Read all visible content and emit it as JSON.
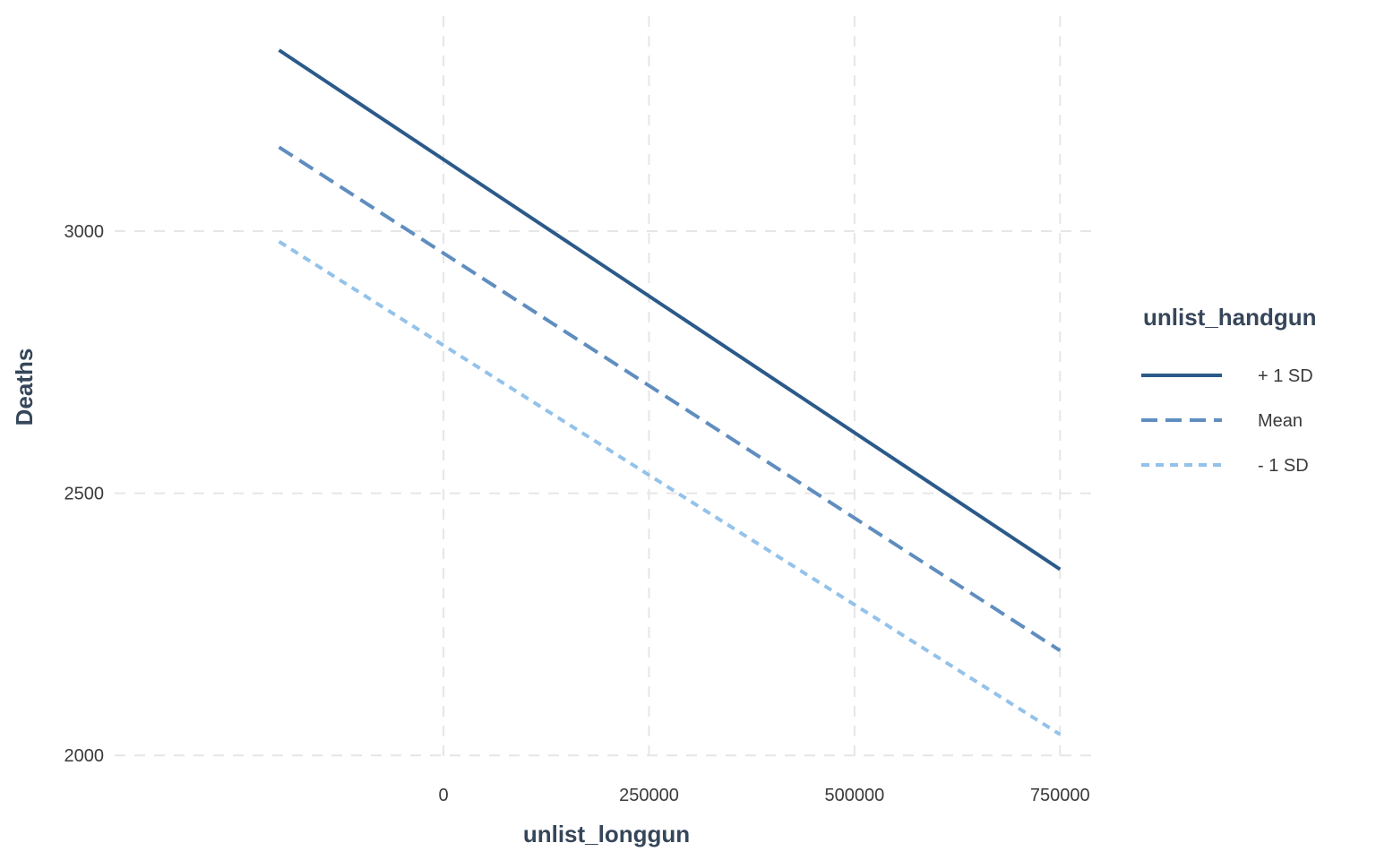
{
  "chart_data": {
    "type": "line",
    "xlabel": "unlist_longgun",
    "ylabel": "Deaths",
    "xlim": [
      -400000,
      790000
    ],
    "ylim": [
      1985,
      3410
    ],
    "x_ticks": [
      0,
      250000,
      500000,
      750000
    ],
    "x_tick_labels": [
      "0",
      "250000",
      "500000",
      "750000"
    ],
    "y_ticks": [
      2000,
      2500,
      3000
    ],
    "y_tick_labels": [
      "2000",
      "2500",
      "3000"
    ],
    "grid": true,
    "legend": {
      "title": "unlist_handgun",
      "placement": "right"
    },
    "series": [
      {
        "name": "+ 1 SD",
        "line_style": "solid",
        "color": "#2b5a8a",
        "x": [
          -200000,
          750000
        ],
        "y": [
          3345,
          2355
        ]
      },
      {
        "name": "Mean",
        "line_style": "dashed",
        "color": "#5f8dbf",
        "x": [
          -200000,
          750000
        ],
        "y": [
          3160,
          2200
        ]
      },
      {
        "name": "- 1 SD",
        "line_style": "dotted",
        "color": "#93c2ea",
        "x": [
          -200000,
          750000
        ],
        "y": [
          2980,
          2040
        ]
      }
    ]
  }
}
